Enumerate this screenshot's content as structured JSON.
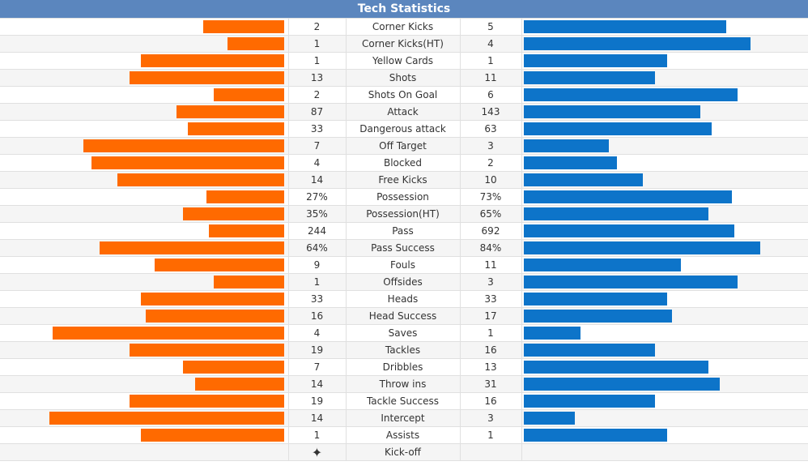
{
  "title": "Tech Statistics",
  "colors": {
    "home": "#ff6a00",
    "away": "#0d74c9",
    "header": "#5b86be"
  },
  "rows": [
    {
      "label": "Corner Kicks",
      "home": "2",
      "away": "5",
      "home_share": 0.345,
      "away_share": 0.855
    },
    {
      "label": "Corner Kicks(HT)",
      "home": "1",
      "away": "4",
      "home_share": 0.24,
      "away_share": 0.96
    },
    {
      "label": "Yellow Cards",
      "home": "1",
      "away": "1",
      "home_share": 0.61,
      "away_share": 0.605
    },
    {
      "label": "Shots",
      "home": "13",
      "away": "11",
      "home_share": 0.66,
      "away_share": 0.555
    },
    {
      "label": "Shots On Goal",
      "home": "2",
      "away": "6",
      "home_share": 0.3,
      "away_share": 0.905
    },
    {
      "label": "Attack",
      "home": "87",
      "away": "143",
      "home_share": 0.46,
      "away_share": 0.745
    },
    {
      "label": "Dangerous attack",
      "home": "33",
      "away": "63",
      "home_share": 0.41,
      "away_share": 0.795
    },
    {
      "label": "Off Target",
      "home": "7",
      "away": "3",
      "home_share": 0.855,
      "away_share": 0.36
    },
    {
      "label": "Blocked",
      "home": "4",
      "away": "2",
      "home_share": 0.82,
      "away_share": 0.395
    },
    {
      "label": "Free Kicks",
      "home": "14",
      "away": "10",
      "home_share": 0.71,
      "away_share": 0.505
    },
    {
      "label": "Possession",
      "home": "27%",
      "away": "73%",
      "home_share": 0.33,
      "away_share": 0.88
    },
    {
      "label": "Possession(HT)",
      "home": "35%",
      "away": "65%",
      "home_share": 0.43,
      "away_share": 0.78
    },
    {
      "label": "Pass",
      "home": "244",
      "away": "692",
      "home_share": 0.32,
      "away_share": 0.89
    },
    {
      "label": "Pass Success",
      "home": "64%",
      "away": "84%",
      "home_share": 0.785,
      "away_share": 1.0
    },
    {
      "label": "Fouls",
      "home": "9",
      "away": "11",
      "home_share": 0.55,
      "away_share": 0.665
    },
    {
      "label": "Offsides",
      "home": "1",
      "away": "3",
      "home_share": 0.3,
      "away_share": 0.905
    },
    {
      "label": "Heads",
      "home": "33",
      "away": "33",
      "home_share": 0.61,
      "away_share": 0.605
    },
    {
      "label": "Head Success",
      "home": "16",
      "away": "17",
      "home_share": 0.59,
      "away_share": 0.625
    },
    {
      "label": "Saves",
      "home": "4",
      "away": "1",
      "home_share": 0.985,
      "away_share": 0.24
    },
    {
      "label": "Tackles",
      "home": "19",
      "away": "16",
      "home_share": 0.66,
      "away_share": 0.555
    },
    {
      "label": "Dribbles",
      "home": "7",
      "away": "13",
      "home_share": 0.43,
      "away_share": 0.78
    },
    {
      "label": "Throw ins",
      "home": "14",
      "away": "31",
      "home_share": 0.38,
      "away_share": 0.83
    },
    {
      "label": "Tackle Success",
      "home": "19",
      "away": "16",
      "home_share": 0.66,
      "away_share": 0.555
    },
    {
      "label": "Intercept",
      "home": "14",
      "away": "3",
      "home_share": 1.0,
      "away_share": 0.215
    },
    {
      "label": "Assists",
      "home": "1",
      "away": "1",
      "home_share": 0.61,
      "away_share": 0.605
    }
  ],
  "kickoff": {
    "label": "Kick-off",
    "icon": "kickoff-star-icon",
    "glyph": "✦"
  }
}
